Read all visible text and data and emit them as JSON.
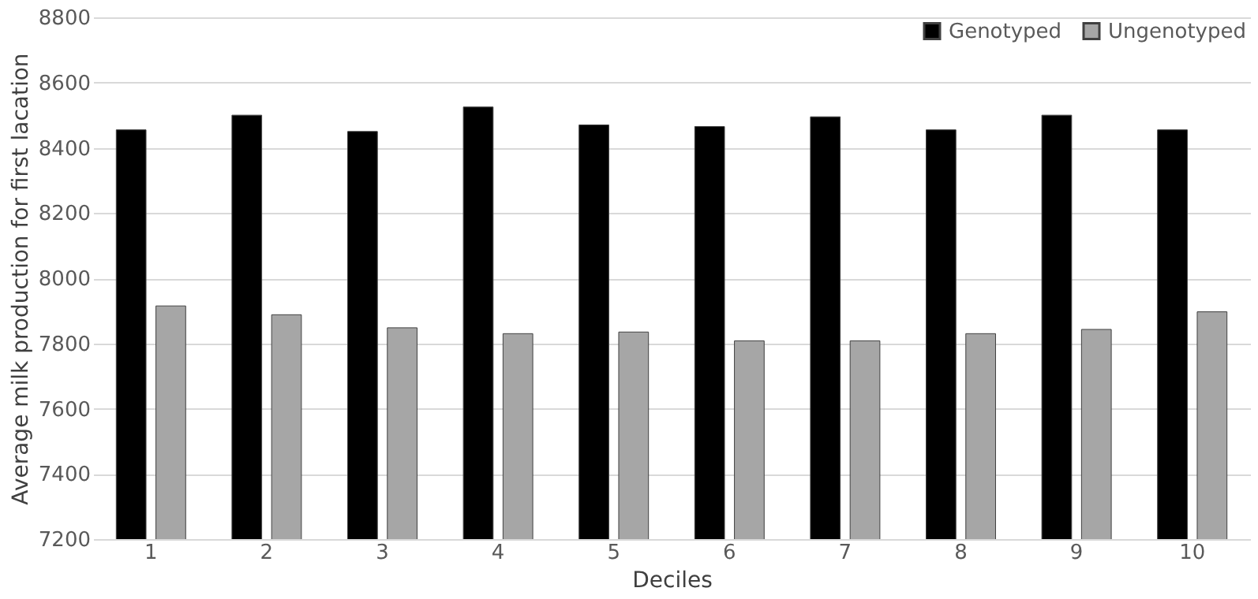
{
  "chart_data": {
    "type": "bar",
    "xlabel": "Deciles",
    "ylabel": "Average milk production for first lacation",
    "categories": [
      "1",
      "2",
      "3",
      "4",
      "5",
      "6",
      "7",
      "8",
      "9",
      "10"
    ],
    "series": [
      {
        "name": "Genotyped",
        "color": "#000000",
        "values": [
          8455,
          8500,
          8450,
          8525,
          8470,
          8465,
          8495,
          8455,
          8500,
          8455
        ]
      },
      {
        "name": "Ungenotyped",
        "color": "#a6a6a6",
        "values": [
          7915,
          7888,
          7848,
          7830,
          7835,
          7808,
          7808,
          7830,
          7843,
          7897
        ]
      }
    ],
    "ylim": [
      7200,
      8800
    ],
    "yticks": [
      7200,
      7400,
      7600,
      7800,
      8000,
      8200,
      8400,
      8600,
      8800
    ],
    "grid": "y",
    "legend": "top right"
  }
}
